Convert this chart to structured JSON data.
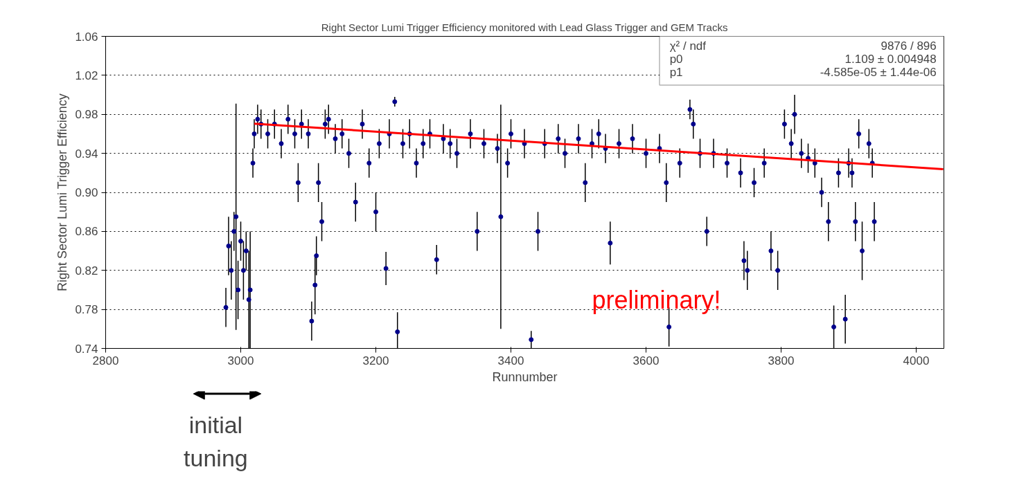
{
  "chart_data": {
    "type": "scatter",
    "title": "Right Sector Lumi Trigger Efficiency monitored with Lead Glass Trigger and GEM Tracks",
    "xlabel": "Runnumber",
    "ylabel": "Right Sector Lumi Trigger Efficiency",
    "xlim": [
      2800,
      4041
    ],
    "xticks": [
      2800,
      3000,
      3200,
      3400,
      3600,
      3800,
      4000
    ],
    "ylim": [
      0.74,
      1.06
    ],
    "yticks": [
      {
        "value": 0.74,
        "label": "0.74"
      },
      {
        "value": 0.78,
        "label": "0.78"
      },
      {
        "value": 0.82,
        "label": "0.82"
      },
      {
        "value": 0.86,
        "label": "0.86"
      },
      {
        "value": 0.9,
        "label": "0.90"
      },
      {
        "value": 0.94,
        "label": "0.94"
      },
      {
        "value": 0.98,
        "label": "0.98"
      },
      {
        "value": 1.02,
        "label": "1.02"
      },
      {
        "value": 1.06,
        "label": "1.06"
      }
    ],
    "grid": "y",
    "series": [
      {
        "color": "#00008b",
        "marker": "circle",
        "x": [
          2978,
          2982,
          2986,
          2990,
          2993,
          2996,
          3000,
          3004,
          3008,
          3012,
          3014,
          3018,
          3020,
          3025,
          3030,
          3040,
          3050,
          3060,
          3070,
          3080,
          3085,
          3090,
          3100,
          3105,
          3110,
          3112,
          3115,
          3120,
          3125,
          3130,
          3140,
          3150,
          3160,
          3170,
          3180,
          3190,
          3200,
          3205,
          3215,
          3220,
          3228,
          3232,
          3240,
          3250,
          3260,
          3270,
          3280,
          3290,
          3300,
          3310,
          3320,
          3340,
          3350,
          3360,
          3380,
          3385,
          3395,
          3400,
          3420,
          3430,
          3440,
          3450,
          3470,
          3480,
          3500,
          3510,
          3520,
          3530,
          3540,
          3547,
          3560,
          3580,
          3600,
          3620,
          3630,
          3634,
          3650,
          3665,
          3670,
          3680,
          3690,
          3700,
          3720,
          3740,
          3745,
          3750,
          3760,
          3775,
          3785,
          3795,
          3805,
          3815,
          3820,
          3830,
          3840,
          3850,
          3860,
          3870,
          3878,
          3885,
          3895,
          3900,
          3905,
          3910,
          3915,
          3920,
          3930,
          3935,
          3938
        ],
        "values": [
          0.782,
          0.845,
          0.82,
          0.86,
          0.875,
          0.8,
          0.85,
          0.82,
          0.84,
          0.79,
          0.8,
          0.93,
          0.96,
          0.975,
          0.97,
          0.96,
          0.97,
          0.95,
          0.975,
          0.96,
          0.91,
          0.97,
          0.96,
          0.768,
          0.805,
          0.835,
          0.91,
          0.87,
          0.97,
          0.975,
          0.955,
          0.96,
          0.94,
          0.89,
          0.97,
          0.93,
          0.88,
          0.95,
          0.822,
          0.96,
          0.993,
          0.757,
          0.95,
          0.96,
          0.93,
          0.95,
          0.96,
          0.831,
          0.955,
          0.95,
          0.94,
          0.96,
          0.86,
          0.95,
          0.945,
          0.875,
          0.93,
          0.96,
          0.95,
          0.749,
          0.86,
          0.95,
          0.955,
          0.94,
          0.955,
          0.91,
          0.95,
          0.96,
          0.945,
          0.848,
          0.95,
          0.955,
          0.94,
          0.945,
          0.91,
          0.762,
          0.93,
          0.985,
          0.97,
          0.94,
          0.86,
          0.94,
          0.93,
          0.92,
          0.83,
          0.82,
          0.91,
          0.93,
          0.84,
          0.82,
          0.97,
          0.95,
          0.98,
          0.94,
          0.935,
          0.93,
          0.9,
          0.87,
          0.762,
          0.92,
          0.77,
          0.93,
          0.92,
          0.87,
          0.96,
          0.84,
          0.95,
          0.93,
          0.87
        ],
        "errors": [
          0.02,
          0.03,
          0.03,
          0.02,
          0.116,
          0.03,
          0.02,
          0.03,
          0.02,
          0.05,
          0.06,
          0.015,
          0.015,
          0.015,
          0.015,
          0.015,
          0.015,
          0.015,
          0.015,
          0.015,
          0.02,
          0.015,
          0.015,
          0.02,
          0.03,
          0.02,
          0.02,
          0.02,
          0.015,
          0.015,
          0.015,
          0.015,
          0.015,
          0.02,
          0.015,
          0.015,
          0.02,
          0.015,
          0.017,
          0.015,
          0.005,
          0.02,
          0.015,
          0.015,
          0.015,
          0.015,
          0.015,
          0.015,
          0.015,
          0.015,
          0.015,
          0.015,
          0.02,
          0.015,
          0.015,
          0.115,
          0.015,
          0.015,
          0.015,
          0.009,
          0.02,
          0.015,
          0.015,
          0.015,
          0.015,
          0.02,
          0.015,
          0.015,
          0.015,
          0.022,
          0.015,
          0.015,
          0.015,
          0.015,
          0.02,
          0.02,
          0.015,
          0.01,
          0.015,
          0.015,
          0.015,
          0.015,
          0.015,
          0.015,
          0.02,
          0.02,
          0.015,
          0.015,
          0.02,
          0.02,
          0.015,
          0.015,
          0.02,
          0.015,
          0.015,
          0.015,
          0.015,
          0.02,
          0.022,
          0.015,
          0.025,
          0.015,
          0.015,
          0.02,
          0.015,
          0.03,
          0.015,
          0.015,
          0.02
        ]
      },
      {
        "type": "line",
        "color": "#ff0000",
        "x": [
          3020,
          4040
        ],
        "values": [
          0.9705,
          0.9238
        ]
      }
    ],
    "annotations": [
      "χ² / ndf",
      "9876 / 896",
      "p0",
      "1.109 ± 0.004948",
      "p1",
      "-4.585e-05 ± 1.44e-06",
      "preliminary!",
      "initial tuning"
    ]
  }
}
